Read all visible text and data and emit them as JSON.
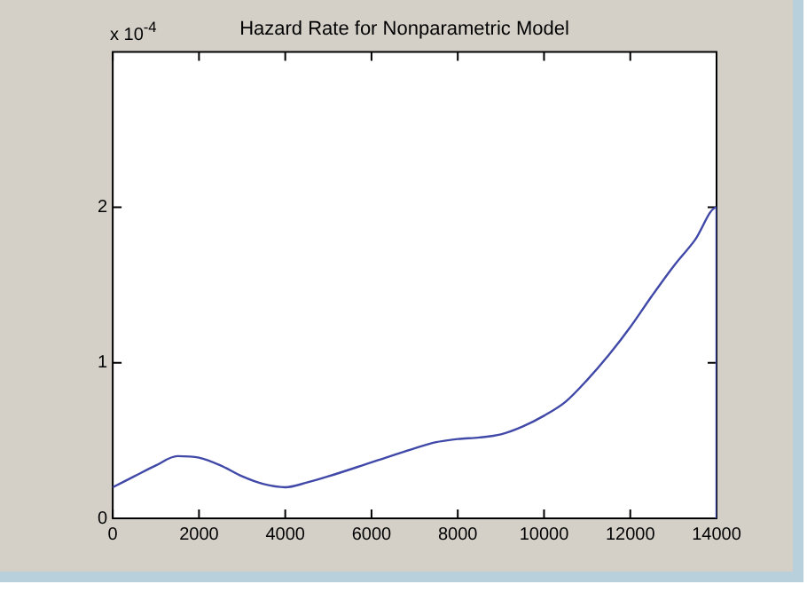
{
  "chart_data": {
    "type": "line",
    "title": "Hazard Rate for Nonparametric Model",
    "annotations": [
      "x 10$^{-4}$"
    ],
    "series": [
      {
        "color": "#4048a8",
        "x": [
          0,
          500,
          1000,
          1500,
          2000,
          2500,
          3000,
          3500,
          4000,
          4500,
          5000,
          6000,
          7000,
          7500,
          8000,
          8500,
          9000,
          9500,
          10000,
          10500,
          11000,
          11500,
          12000,
          12500,
          13000,
          13500,
          14000,
          14000
        ],
        "values": [
          0.2,
          0.27,
          0.34,
          0.4,
          0.39,
          0.34,
          0.27,
          0.22,
          0.2,
          0.23,
          0.27,
          0.36,
          0.45,
          0.49,
          0.51,
          0.52,
          0.54,
          0.59,
          0.66,
          0.75,
          0.89,
          1.05,
          1.23,
          1.43,
          1.62,
          1.79,
          2.0,
          0
        ]
      }
    ],
    "xlim": [
      0,
      14000
    ],
    "xticks": [
      0,
      2000,
      4000,
      6000,
      8000,
      10000,
      12000,
      14000
    ],
    "ylim": [
      0,
      3
    ],
    "yticks": [
      0,
      1,
      2
    ],
    "legend": false,
    "marker": "none",
    "line_style": "solid"
  }
}
